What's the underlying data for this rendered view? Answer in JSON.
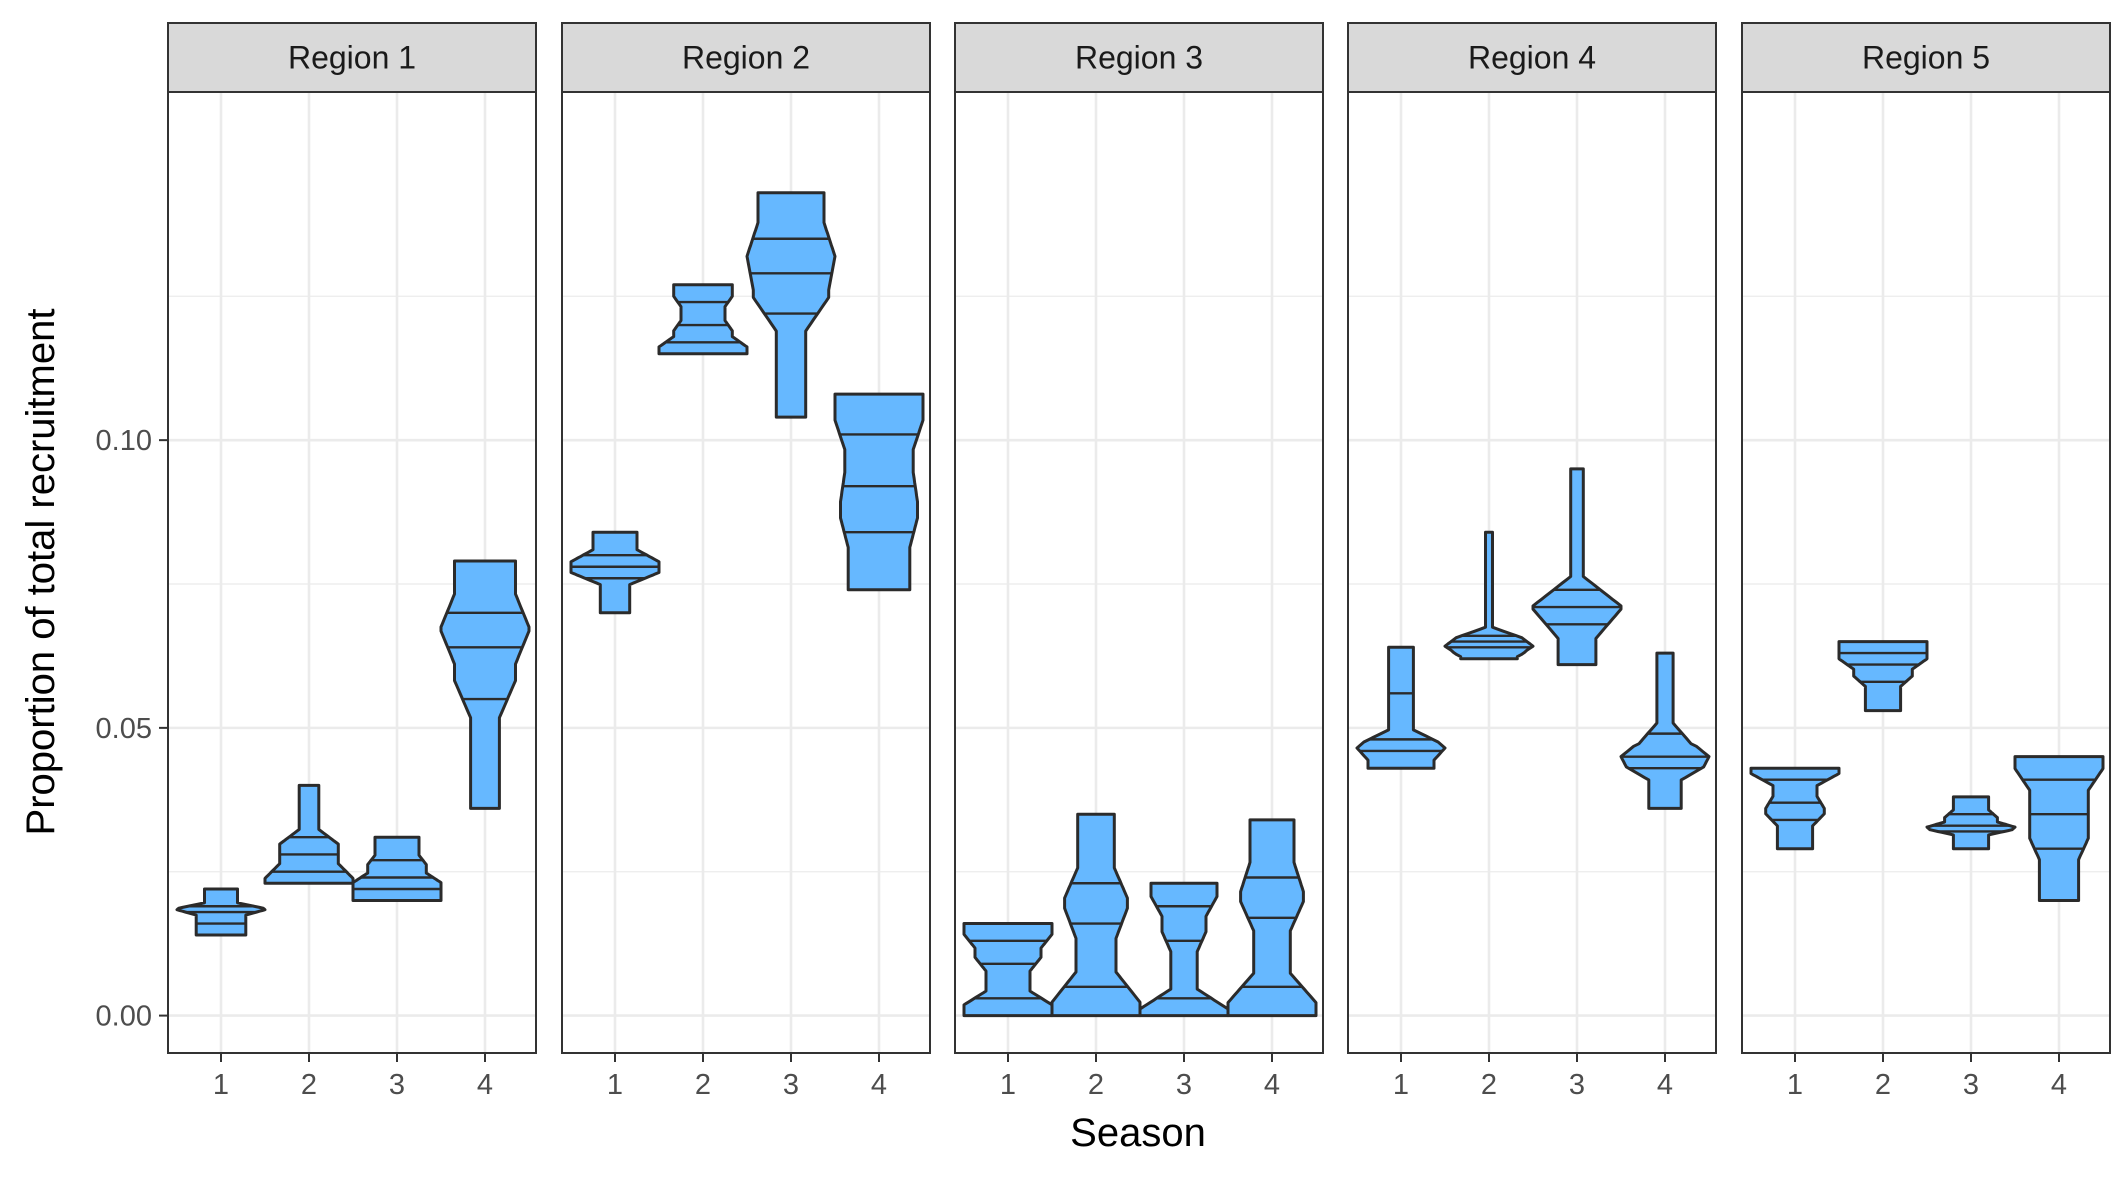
{
  "chart_data": {
    "type": "violin",
    "xlabel": "Season",
    "ylabel": "Proportion of total recruitment",
    "ylim": [
      -0.0065,
      0.1605
    ],
    "y_ticks": [
      0.0,
      0.05,
      0.1
    ],
    "y_tick_labels": [
      "0.00",
      "0.05",
      "0.10"
    ],
    "x_tick_labels": [
      "1",
      "2",
      "3",
      "4"
    ],
    "grid": true,
    "fill_color": "#66b8ff",
    "outline_color": "#2b2b2b",
    "strip_color": "#d9d9d9",
    "panels": [
      {
        "label": "Region 1",
        "violins": [
          {
            "season": "1",
            "min": 0.014,
            "max": 0.022,
            "q1": 0.016,
            "median": 0.018,
            "q3": 0.019
          },
          {
            "season": "2",
            "min": 0.023,
            "max": 0.04,
            "q1": 0.025,
            "median": 0.028,
            "q3": 0.031
          },
          {
            "season": "3",
            "min": 0.02,
            "max": 0.031,
            "q1": 0.022,
            "median": 0.024,
            "q3": 0.027
          },
          {
            "season": "4",
            "min": 0.036,
            "max": 0.079,
            "q1": 0.055,
            "median": 0.064,
            "q3": 0.07
          }
        ]
      },
      {
        "label": "Region 2",
        "violins": [
          {
            "season": "1",
            "min": 0.07,
            "max": 0.084,
            "q1": 0.076,
            "median": 0.078,
            "q3": 0.08
          },
          {
            "season": "2",
            "min": 0.115,
            "max": 0.127,
            "q1": 0.117,
            "median": 0.12,
            "q3": 0.124
          },
          {
            "season": "3",
            "min": 0.104,
            "max": 0.143,
            "q1": 0.122,
            "median": 0.129,
            "q3": 0.135
          },
          {
            "season": "4",
            "min": 0.074,
            "max": 0.108,
            "q1": 0.084,
            "median": 0.092,
            "q3": 0.101
          }
        ]
      },
      {
        "label": "Region 3",
        "violins": [
          {
            "season": "1",
            "min": 0.0,
            "max": 0.016,
            "q1": 0.003,
            "median": 0.009,
            "q3": 0.013
          },
          {
            "season": "2",
            "min": 0.0,
            "max": 0.035,
            "q1": 0.005,
            "median": 0.016,
            "q3": 0.023
          },
          {
            "season": "3",
            "min": 0.0,
            "max": 0.023,
            "q1": 0.003,
            "median": 0.013,
            "q3": 0.019
          },
          {
            "season": "4",
            "min": 0.0,
            "max": 0.034,
            "q1": 0.005,
            "median": 0.017,
            "q3": 0.024
          }
        ]
      },
      {
        "label": "Region 4",
        "violins": [
          {
            "season": "1",
            "min": 0.043,
            "max": 0.064,
            "q1": 0.046,
            "median": 0.048,
            "q3": 0.056
          },
          {
            "season": "2",
            "min": 0.062,
            "max": 0.084,
            "q1": 0.064,
            "median": 0.065,
            "q3": 0.066
          },
          {
            "season": "3",
            "min": 0.061,
            "max": 0.095,
            "q1": 0.068,
            "median": 0.071,
            "q3": 0.074
          },
          {
            "season": "4",
            "min": 0.036,
            "max": 0.063,
            "q1": 0.043,
            "median": 0.045,
            "q3": 0.049
          }
        ]
      },
      {
        "label": "Region 5",
        "violins": [
          {
            "season": "1",
            "min": 0.029,
            "max": 0.043,
            "q1": 0.034,
            "median": 0.037,
            "q3": 0.041
          },
          {
            "season": "2",
            "min": 0.053,
            "max": 0.065,
            "q1": 0.058,
            "median": 0.061,
            "q3": 0.063
          },
          {
            "season": "3",
            "min": 0.029,
            "max": 0.038,
            "q1": 0.032,
            "median": 0.033,
            "q3": 0.035
          },
          {
            "season": "4",
            "min": 0.02,
            "max": 0.045,
            "q1": 0.029,
            "median": 0.035,
            "q3": 0.041
          }
        ]
      }
    ]
  }
}
